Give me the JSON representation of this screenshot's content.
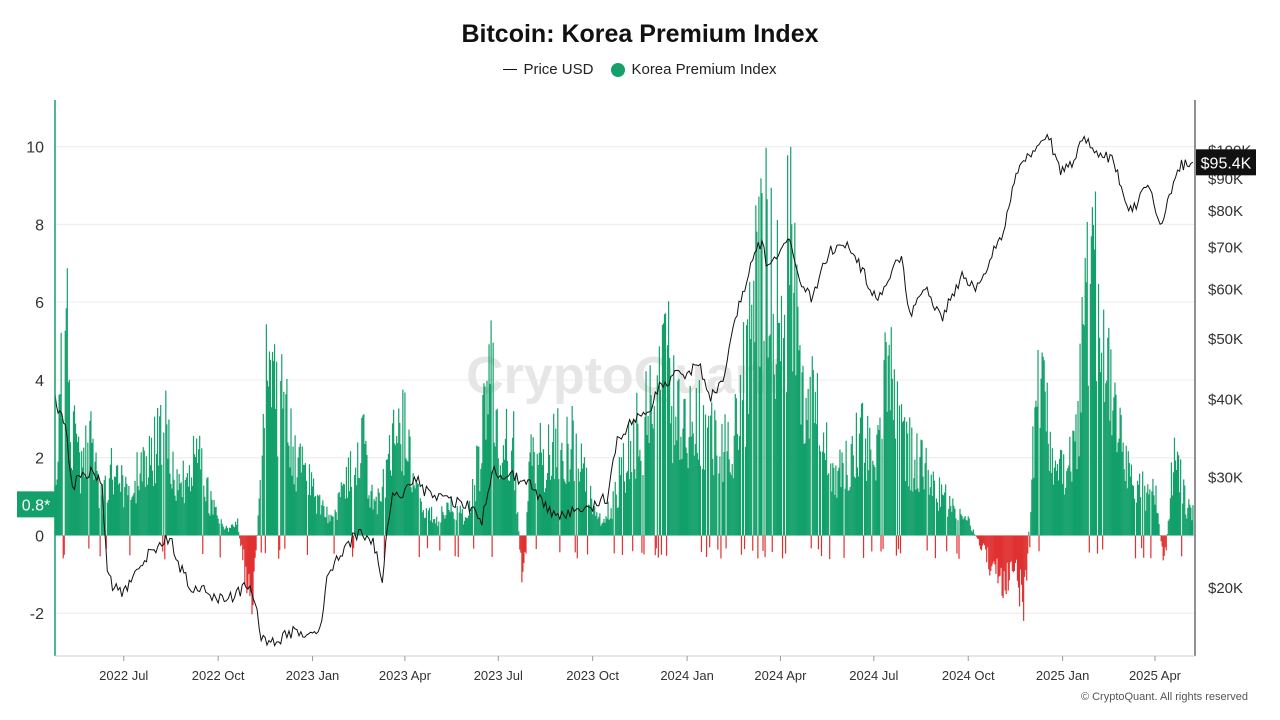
{
  "chart_data": {
    "type": "bar",
    "title": "Bitcoin: Korea Premium Index",
    "legend": {
      "placement": "top-center",
      "items": [
        {
          "label": "Price USD",
          "marker": "line"
        },
        {
          "label": "Korea Premium Index",
          "marker": "dot"
        }
      ]
    },
    "grid": true,
    "colors": {
      "positive": "#13a06b",
      "negative": "#e03131",
      "price": "#111111",
      "axis_line": "#13a06b"
    },
    "y_left": {
      "ticks": [
        -2,
        0,
        2,
        4,
        6,
        8,
        10
      ],
      "ylim": [
        -3.1,
        11.2
      ]
    },
    "y_right": {
      "scale": "log",
      "ylim": [
        15500,
        120000
      ],
      "ticks": [
        20000,
        30000,
        40000,
        50000,
        60000,
        70000,
        80000,
        90000,
        100000
      ],
      "tick_labels": [
        "$20K",
        "$30K",
        "$40K",
        "$50K",
        "$60K",
        "$70K",
        "$80K",
        "$90K",
        "$100K"
      ]
    },
    "x_axis": {
      "start": "2022-04-25",
      "end": "2025-05-10",
      "ticks": [
        {
          "date": "2022-07-01",
          "label": "2022 Jul"
        },
        {
          "date": "2022-10-01",
          "label": "2022 Oct"
        },
        {
          "date": "2023-01-01",
          "label": "2023 Jan"
        },
        {
          "date": "2023-04-01",
          "label": "2023 Apr"
        },
        {
          "date": "2023-07-01",
          "label": "2023 Jul"
        },
        {
          "date": "2023-10-01",
          "label": "2023 Oct"
        },
        {
          "date": "2024-01-01",
          "label": "2024 Jan"
        },
        {
          "date": "2024-04-01",
          "label": "2024 Apr"
        },
        {
          "date": "2024-07-01",
          "label": "2024 Jul"
        },
        {
          "date": "2024-10-01",
          "label": "2024 Oct"
        },
        {
          "date": "2025-01-01",
          "label": "2025 Jan"
        },
        {
          "date": "2025-04-01",
          "label": "2025 Apr"
        }
      ]
    },
    "current_kpi": {
      "value": 0.8,
      "label": "0.8*"
    },
    "current_price": {
      "value": 95400,
      "label": "$95.4K"
    },
    "series": [
      {
        "name": "Korea Premium Index",
        "kind": "bar",
        "axis": "left",
        "points": [
          [
            "2022-04-25",
            1.5
          ],
          [
            "2022-05-01",
            6.8
          ],
          [
            "2022-05-05",
            8.5
          ],
          [
            "2022-05-10",
            3.5
          ],
          [
            "2022-05-20",
            2.5
          ],
          [
            "2022-06-01",
            3.0
          ],
          [
            "2022-06-10",
            1.0
          ],
          [
            "2022-06-20",
            2.5
          ],
          [
            "2022-07-01",
            1.5
          ],
          [
            "2022-07-15",
            2.0
          ],
          [
            "2022-08-01",
            3.0
          ],
          [
            "2022-08-08",
            3.9
          ],
          [
            "2022-08-20",
            2.0
          ],
          [
            "2022-09-01",
            2.0
          ],
          [
            "2022-09-10",
            3.2
          ],
          [
            "2022-09-20",
            1.5
          ],
          [
            "2022-10-01",
            0.5
          ],
          [
            "2022-10-10",
            0.2
          ],
          [
            "2022-10-20",
            0.4
          ],
          [
            "2022-10-28",
            -1.5
          ],
          [
            "2022-11-05",
            -2.3
          ],
          [
            "2022-11-12",
            3.0
          ],
          [
            "2022-11-18",
            5.6
          ],
          [
            "2022-11-25",
            5.0
          ],
          [
            "2022-12-05",
            4.0
          ],
          [
            "2022-12-15",
            2.5
          ],
          [
            "2023-01-01",
            1.5
          ],
          [
            "2023-01-10",
            1.0
          ],
          [
            "2023-01-20",
            0.5
          ],
          [
            "2023-02-01",
            1.5
          ],
          [
            "2023-02-10",
            2.5
          ],
          [
            "2023-02-20",
            3.0
          ],
          [
            "2023-03-01",
            1.0
          ],
          [
            "2023-03-10",
            1.5
          ],
          [
            "2023-03-20",
            3.0
          ],
          [
            "2023-04-01",
            3.5
          ],
          [
            "2023-04-10",
            2.0
          ],
          [
            "2023-04-20",
            1.0
          ],
          [
            "2023-05-01",
            0.5
          ],
          [
            "2023-05-15",
            1.0
          ],
          [
            "2023-06-01",
            0.5
          ],
          [
            "2023-06-15",
            3.0
          ],
          [
            "2023-06-25",
            6.2
          ],
          [
            "2023-07-01",
            2.5
          ],
          [
            "2023-07-15",
            3.5
          ],
          [
            "2023-07-25",
            -2.1
          ],
          [
            "2023-08-01",
            3.0
          ],
          [
            "2023-08-15",
            2.5
          ],
          [
            "2023-09-01",
            3.3
          ],
          [
            "2023-09-15",
            3.0
          ],
          [
            "2023-10-01",
            1.0
          ],
          [
            "2023-10-10",
            0.5
          ],
          [
            "2023-10-20",
            1.0
          ],
          [
            "2023-11-01",
            2.5
          ],
          [
            "2023-11-15",
            3.5
          ],
          [
            "2023-12-01",
            4.5
          ],
          [
            "2023-12-10",
            6.6
          ],
          [
            "2023-12-20",
            4.0
          ],
          [
            "2024-01-01",
            3.5
          ],
          [
            "2024-01-15",
            4.0
          ],
          [
            "2024-02-01",
            3.0
          ],
          [
            "2024-02-15",
            3.5
          ],
          [
            "2024-03-01",
            6.0
          ],
          [
            "2024-03-10",
            9.0
          ],
          [
            "2024-03-15",
            10.8
          ],
          [
            "2024-03-25",
            9.0
          ],
          [
            "2024-04-01",
            7.0
          ],
          [
            "2024-04-10",
            9.8
          ],
          [
            "2024-04-20",
            6.0
          ],
          [
            "2024-05-01",
            4.5
          ],
          [
            "2024-05-15",
            3.0
          ],
          [
            "2024-06-01",
            2.0
          ],
          [
            "2024-06-15",
            3.5
          ],
          [
            "2024-07-01",
            2.5
          ],
          [
            "2024-07-15",
            6.0
          ],
          [
            "2024-08-01",
            3.0
          ],
          [
            "2024-08-15",
            2.5
          ],
          [
            "2024-09-01",
            1.5
          ],
          [
            "2024-09-15",
            1.0
          ],
          [
            "2024-10-01",
            0.5
          ],
          [
            "2024-10-15",
            -0.5
          ],
          [
            "2024-11-01",
            -1.6
          ],
          [
            "2024-11-15",
            -1.2
          ],
          [
            "2024-11-25",
            -2.4
          ],
          [
            "2024-12-05",
            4.0
          ],
          [
            "2024-12-10",
            5.2
          ],
          [
            "2024-12-20",
            3.0
          ],
          [
            "2025-01-01",
            2.0
          ],
          [
            "2025-01-15",
            3.5
          ],
          [
            "2025-01-25",
            8.1
          ],
          [
            "2025-02-01",
            8.3
          ],
          [
            "2025-02-10",
            6.0
          ],
          [
            "2025-02-20",
            4.0
          ],
          [
            "2025-03-01",
            2.5
          ],
          [
            "2025-03-15",
            1.5
          ],
          [
            "2025-04-01",
            1.5
          ],
          [
            "2025-04-10",
            -1.2
          ],
          [
            "2025-04-20",
            3.0
          ],
          [
            "2025-05-01",
            1.0
          ],
          [
            "2025-05-08",
            0.8
          ]
        ]
      },
      {
        "name": "Price USD",
        "kind": "line",
        "axis": "right",
        "points": [
          [
            "2022-04-25",
            40000
          ],
          [
            "2022-04-28",
            38500
          ],
          [
            "2022-05-05",
            36000
          ],
          [
            "2022-05-12",
            29000
          ],
          [
            "2022-05-20",
            30000
          ],
          [
            "2022-06-01",
            30500
          ],
          [
            "2022-06-10",
            29000
          ],
          [
            "2022-06-15",
            21000
          ],
          [
            "2022-06-20",
            20000
          ],
          [
            "2022-07-01",
            19500
          ],
          [
            "2022-07-10",
            21000
          ],
          [
            "2022-07-25",
            22500
          ],
          [
            "2022-08-05",
            23500
          ],
          [
            "2022-08-15",
            24000
          ],
          [
            "2022-08-25",
            21500
          ],
          [
            "2022-09-05",
            20000
          ],
          [
            "2022-09-15",
            19800
          ],
          [
            "2022-10-01",
            19200
          ],
          [
            "2022-10-15",
            19300
          ],
          [
            "2022-11-01",
            20300
          ],
          [
            "2022-11-08",
            18000
          ],
          [
            "2022-11-12",
            16500
          ],
          [
            "2022-11-25",
            16300
          ],
          [
            "2022-12-15",
            17000
          ],
          [
            "2023-01-01",
            16600
          ],
          [
            "2023-01-10",
            17500
          ],
          [
            "2023-01-15",
            20800
          ],
          [
            "2023-02-01",
            23000
          ],
          [
            "2023-02-15",
            24500
          ],
          [
            "2023-03-01",
            23500
          ],
          [
            "2023-03-10",
            20500
          ],
          [
            "2023-03-15",
            24500
          ],
          [
            "2023-03-20",
            28000
          ],
          [
            "2023-04-01",
            28300
          ],
          [
            "2023-04-12",
            30000
          ],
          [
            "2023-04-20",
            28500
          ],
          [
            "2023-05-10",
            27500
          ],
          [
            "2023-06-01",
            27000
          ],
          [
            "2023-06-15",
            25500
          ],
          [
            "2023-06-25",
            30500
          ],
          [
            "2023-07-15",
            30000
          ],
          [
            "2023-08-01",
            29500
          ],
          [
            "2023-08-18",
            26500
          ],
          [
            "2023-09-01",
            25800
          ],
          [
            "2023-09-15",
            26500
          ],
          [
            "2023-10-01",
            27000
          ],
          [
            "2023-10-15",
            27800
          ],
          [
            "2023-10-25",
            34000
          ],
          [
            "2023-11-10",
            37000
          ],
          [
            "2023-11-25",
            37500
          ],
          [
            "2023-12-05",
            42000
          ],
          [
            "2023-12-20",
            43500
          ],
          [
            "2024-01-05",
            44000
          ],
          [
            "2024-01-12",
            46000
          ],
          [
            "2024-01-22",
            40000
          ],
          [
            "2024-02-05",
            43000
          ],
          [
            "2024-02-15",
            52000
          ],
          [
            "2024-02-28",
            62000
          ],
          [
            "2024-03-05",
            66000
          ],
          [
            "2024-03-14",
            72000
          ],
          [
            "2024-03-20",
            64000
          ],
          [
            "2024-04-01",
            70000
          ],
          [
            "2024-04-10",
            71000
          ],
          [
            "2024-04-18",
            62000
          ],
          [
            "2024-05-01",
            58000
          ],
          [
            "2024-05-20",
            69000
          ],
          [
            "2024-06-05",
            70500
          ],
          [
            "2024-06-20",
            64000
          ],
          [
            "2024-07-05",
            57000
          ],
          [
            "2024-07-15",
            62000
          ],
          [
            "2024-07-28",
            68000
          ],
          [
            "2024-08-05",
            54000
          ],
          [
            "2024-08-20",
            60000
          ],
          [
            "2024-09-06",
            54000
          ],
          [
            "2024-09-25",
            63000
          ],
          [
            "2024-10-10",
            60000
          ],
          [
            "2024-10-28",
            70000
          ],
          [
            "2024-11-06",
            75000
          ],
          [
            "2024-11-13",
            88000
          ],
          [
            "2024-11-22",
            97000
          ],
          [
            "2024-12-05",
            99000
          ],
          [
            "2024-12-17",
            106000
          ],
          [
            "2024-12-30",
            93000
          ],
          [
            "2025-01-10",
            94000
          ],
          [
            "2025-01-22",
            105000
          ],
          [
            "2025-02-05",
            98000
          ],
          [
            "2025-02-20",
            96000
          ],
          [
            "2025-03-01",
            84000
          ],
          [
            "2025-03-10",
            80000
          ],
          [
            "2025-03-25",
            87000
          ],
          [
            "2025-04-08",
            76000
          ],
          [
            "2025-04-15",
            84000
          ],
          [
            "2025-04-25",
            94000
          ],
          [
            "2025-05-08",
            95400
          ]
        ]
      }
    ]
  },
  "watermark": "CryptoQuant",
  "copyright": "© CryptoQuant. All rights reserved"
}
